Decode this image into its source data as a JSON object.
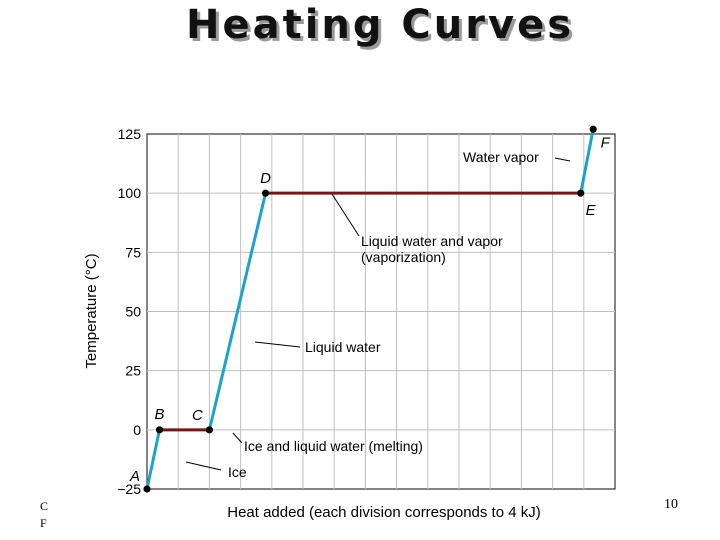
{
  "slide": {
    "title": "Heating Curves",
    "page_number": "10",
    "corner_text_lines": [
      "C",
      "F"
    ]
  },
  "colors": {
    "phase_change": "#7a1515",
    "heating": "#1aa3cc",
    "grid": "#c0c0c0",
    "point": "#000000"
  },
  "chart_data": {
    "type": "line",
    "title": "",
    "xlabel": "Heat added (each division corresponds to 4 kJ)",
    "ylabel": "Temperature (°C)",
    "xlim": [
      0,
      15
    ],
    "ylim": [
      -25,
      125
    ],
    "x_divisions": 15,
    "yticks": [
      -25,
      0,
      25,
      50,
      75,
      100,
      125
    ],
    "grid": true,
    "points": [
      {
        "label": "A",
        "x": 0,
        "y": -25
      },
      {
        "label": "B",
        "x": 0.4,
        "y": 0
      },
      {
        "label": "C",
        "x": 2.0,
        "y": 0
      },
      {
        "label": "D",
        "x": 3.8,
        "y": 100
      },
      {
        "label": "E",
        "x": 13.9,
        "y": 100
      },
      {
        "label": "F",
        "x": 14.3,
        "y": 127
      }
    ],
    "segments": [
      {
        "from": "A",
        "to": "B",
        "kind": "heating"
      },
      {
        "from": "B",
        "to": "C",
        "kind": "phase_change"
      },
      {
        "from": "C",
        "to": "D",
        "kind": "heating"
      },
      {
        "from": "D",
        "to": "E",
        "kind": "phase_change"
      },
      {
        "from": "E",
        "to": "F",
        "kind": "heating"
      }
    ],
    "annotations": [
      {
        "text": "Ice"
      },
      {
        "text": "Ice and liquid water (melting)"
      },
      {
        "text": "Liquid water"
      },
      {
        "text": "Liquid water and vapor"
      },
      {
        "text": "(vaporization)"
      },
      {
        "text": "Water vapor"
      }
    ]
  }
}
